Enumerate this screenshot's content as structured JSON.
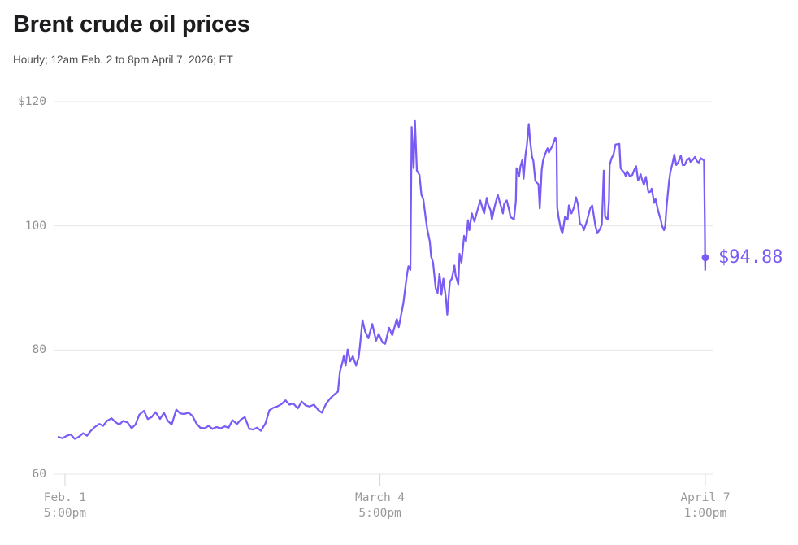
{
  "header": {
    "title": "Brent crude oil prices",
    "subtitle": "Hourly; 12am Feb. 2 to 8pm April 7, 2026; ET"
  },
  "colors": {
    "line": "#7a5cf5",
    "marker": "#7a5cf5",
    "end_label": "#7a5cf5",
    "title_text": "#1d1d1f",
    "subtitle_text": "#4d4d4d",
    "axis_label": "#8e8e8e",
    "gridline": "#e9e7e5",
    "tick": "#d8d6d4",
    "background": "#ffffff"
  },
  "chart_data": {
    "type": "line",
    "title": "Brent crude oil prices",
    "subtitle": "Hourly; 12am Feb. 2 to 8pm April 7, 2026; ET",
    "x_unit": "time, hourly, fraction of span 12am Feb. 2 to 8pm April 7, 2026 ET",
    "y_unit": "USD per barrel",
    "ylim": [
      60,
      120
    ],
    "grid": "horizontal",
    "legend": "none",
    "y_ticks": [
      {
        "label": "$120",
        "value": 120
      },
      {
        "label": "100",
        "value": 100
      },
      {
        "label": "80",
        "value": 80
      },
      {
        "label": "60",
        "value": 60
      }
    ],
    "x_ticks": [
      {
        "line1": "Feb. 1",
        "line2": "5:00pm",
        "t": 0.01
      },
      {
        "line1": "March 4",
        "line2": "5:00pm",
        "t": 0.497
      },
      {
        "line1": "April 7",
        "line2": "1:00pm",
        "t": 1.0
      }
    ],
    "end_label": "$94.88",
    "last_price": 94.88,
    "points": [
      [
        0.0,
        66.0
      ],
      [
        0.006,
        65.8
      ],
      [
        0.013,
        66.2
      ],
      [
        0.019,
        66.4
      ],
      [
        0.025,
        65.7
      ],
      [
        0.031,
        66.0
      ],
      [
        0.038,
        66.6
      ],
      [
        0.044,
        66.2
      ],
      [
        0.05,
        67.0
      ],
      [
        0.056,
        67.6
      ],
      [
        0.063,
        68.1
      ],
      [
        0.069,
        67.8
      ],
      [
        0.075,
        68.6
      ],
      [
        0.082,
        69.0
      ],
      [
        0.088,
        68.4
      ],
      [
        0.094,
        68.0
      ],
      [
        0.1,
        68.6
      ],
      [
        0.107,
        68.3
      ],
      [
        0.113,
        67.4
      ],
      [
        0.119,
        68.0
      ],
      [
        0.125,
        69.6
      ],
      [
        0.132,
        70.2
      ],
      [
        0.138,
        68.9
      ],
      [
        0.144,
        69.2
      ],
      [
        0.15,
        70.0
      ],
      [
        0.157,
        68.9
      ],
      [
        0.163,
        69.9
      ],
      [
        0.169,
        68.6
      ],
      [
        0.175,
        68.0
      ],
      [
        0.182,
        70.4
      ],
      [
        0.188,
        69.8
      ],
      [
        0.194,
        69.7
      ],
      [
        0.201,
        69.9
      ],
      [
        0.207,
        69.4
      ],
      [
        0.213,
        68.2
      ],
      [
        0.219,
        67.5
      ],
      [
        0.226,
        67.4
      ],
      [
        0.232,
        67.8
      ],
      [
        0.238,
        67.3
      ],
      [
        0.244,
        67.6
      ],
      [
        0.251,
        67.4
      ],
      [
        0.257,
        67.7
      ],
      [
        0.263,
        67.5
      ],
      [
        0.269,
        68.7
      ],
      [
        0.276,
        68.1
      ],
      [
        0.282,
        68.8
      ],
      [
        0.288,
        69.2
      ],
      [
        0.295,
        67.3
      ],
      [
        0.301,
        67.2
      ],
      [
        0.307,
        67.5
      ],
      [
        0.313,
        67.0
      ],
      [
        0.32,
        68.2
      ],
      [
        0.326,
        70.3
      ],
      [
        0.332,
        70.7
      ],
      [
        0.338,
        70.9
      ],
      [
        0.345,
        71.3
      ],
      [
        0.351,
        71.9
      ],
      [
        0.357,
        71.2
      ],
      [
        0.363,
        71.4
      ],
      [
        0.37,
        70.6
      ],
      [
        0.376,
        71.7
      ],
      [
        0.382,
        71.1
      ],
      [
        0.388,
        70.9
      ],
      [
        0.395,
        71.2
      ],
      [
        0.401,
        70.4
      ],
      [
        0.407,
        69.9
      ],
      [
        0.414,
        71.4
      ],
      [
        0.42,
        72.2
      ],
      [
        0.426,
        72.8
      ],
      [
        0.432,
        73.3
      ],
      [
        0.435,
        76.5
      ],
      [
        0.439,
        78.0
      ],
      [
        0.441,
        79.0
      ],
      [
        0.444,
        77.5
      ],
      [
        0.447,
        80.1
      ],
      [
        0.451,
        78.2
      ],
      [
        0.455,
        79.0
      ],
      [
        0.46,
        77.5
      ],
      [
        0.464,
        78.8
      ],
      [
        0.466,
        80.6
      ],
      [
        0.47,
        84.8
      ],
      [
        0.474,
        83.0
      ],
      [
        0.479,
        81.9
      ],
      [
        0.485,
        84.2
      ],
      [
        0.491,
        81.5
      ],
      [
        0.495,
        82.6
      ],
      [
        0.501,
        81.2
      ],
      [
        0.505,
        81.0
      ],
      [
        0.511,
        83.6
      ],
      [
        0.516,
        82.4
      ],
      [
        0.523,
        85.0
      ],
      [
        0.526,
        83.7
      ],
      [
        0.533,
        87.5
      ],
      [
        0.536,
        90.0
      ],
      [
        0.539,
        92.3
      ],
      [
        0.541,
        93.5
      ],
      [
        0.544,
        92.9
      ],
      [
        0.546,
        115.9
      ],
      [
        0.549,
        109.3
      ],
      [
        0.551,
        117.0
      ],
      [
        0.554,
        108.9
      ],
      [
        0.558,
        108.2
      ],
      [
        0.561,
        105.0
      ],
      [
        0.564,
        104.3
      ],
      [
        0.568,
        101.0
      ],
      [
        0.57,
        99.5
      ],
      [
        0.574,
        97.5
      ],
      [
        0.576,
        95.1
      ],
      [
        0.579,
        94.1
      ],
      [
        0.583,
        90.0
      ],
      [
        0.586,
        89.2
      ],
      [
        0.589,
        92.3
      ],
      [
        0.591,
        90.5
      ],
      [
        0.592,
        88.9
      ],
      [
        0.595,
        91.5
      ],
      [
        0.599,
        88.3
      ],
      [
        0.601,
        85.7
      ],
      [
        0.605,
        91.0
      ],
      [
        0.608,
        91.5
      ],
      [
        0.612,
        93.6
      ],
      [
        0.614,
        92.0
      ],
      [
        0.618,
        90.6
      ],
      [
        0.62,
        95.5
      ],
      [
        0.623,
        94.1
      ],
      [
        0.627,
        98.4
      ],
      [
        0.63,
        97.5
      ],
      [
        0.633,
        100.9
      ],
      [
        0.635,
        99.3
      ],
      [
        0.639,
        102.0
      ],
      [
        0.643,
        100.7
      ],
      [
        0.645,
        101.5
      ],
      [
        0.649,
        103.0
      ],
      [
        0.652,
        104.1
      ],
      [
        0.655,
        103.0
      ],
      [
        0.658,
        102.0
      ],
      [
        0.662,
        104.5
      ],
      [
        0.664,
        103.5
      ],
      [
        0.668,
        102.5
      ],
      [
        0.67,
        101.0
      ],
      [
        0.674,
        103.0
      ],
      [
        0.679,
        105.0
      ],
      [
        0.683,
        103.5
      ],
      [
        0.687,
        102.0
      ],
      [
        0.689,
        103.5
      ],
      [
        0.693,
        104.1
      ],
      [
        0.696,
        102.8
      ],
      [
        0.699,
        101.4
      ],
      [
        0.702,
        101.2
      ],
      [
        0.704,
        101.0
      ],
      [
        0.707,
        104.0
      ],
      [
        0.708,
        109.3
      ],
      [
        0.712,
        108.0
      ],
      [
        0.714,
        109.5
      ],
      [
        0.717,
        110.6
      ],
      [
        0.719,
        107.6
      ],
      [
        0.722,
        111.5
      ],
      [
        0.724,
        112.9
      ],
      [
        0.727,
        116.4
      ],
      [
        0.729,
        113.8
      ],
      [
        0.732,
        111.1
      ],
      [
        0.734,
        110.5
      ],
      [
        0.737,
        107.3
      ],
      [
        0.739,
        107.0
      ],
      [
        0.742,
        106.7
      ],
      [
        0.744,
        102.8
      ],
      [
        0.747,
        109.0
      ],
      [
        0.749,
        110.5
      ],
      [
        0.752,
        111.5
      ],
      [
        0.756,
        112.5
      ],
      [
        0.758,
        111.8
      ],
      [
        0.762,
        112.6
      ],
      [
        0.764,
        113.0
      ],
      [
        0.768,
        114.2
      ],
      [
        0.77,
        113.5
      ],
      [
        0.771,
        103.0
      ],
      [
        0.773,
        101.4
      ],
      [
        0.777,
        99.3
      ],
      [
        0.779,
        98.8
      ],
      [
        0.783,
        101.5
      ],
      [
        0.787,
        101.0
      ],
      [
        0.789,
        103.3
      ],
      [
        0.793,
        102.0
      ],
      [
        0.797,
        103.0
      ],
      [
        0.8,
        104.6
      ],
      [
        0.803,
        103.5
      ],
      [
        0.806,
        100.4
      ],
      [
        0.81,
        100.0
      ],
      [
        0.812,
        99.3
      ],
      [
        0.816,
        100.5
      ],
      [
        0.822,
        102.8
      ],
      [
        0.825,
        103.3
      ],
      [
        0.83,
        100.0
      ],
      [
        0.833,
        98.8
      ],
      [
        0.837,
        99.5
      ],
      [
        0.84,
        100.2
      ],
      [
        0.843,
        108.9
      ],
      [
        0.845,
        101.5
      ],
      [
        0.849,
        101.0
      ],
      [
        0.851,
        104.0
      ],
      [
        0.852,
        109.8
      ],
      [
        0.855,
        110.9
      ],
      [
        0.858,
        111.5
      ],
      [
        0.861,
        113.1
      ],
      [
        0.867,
        113.2
      ],
      [
        0.869,
        109.3
      ],
      [
        0.871,
        109.0
      ],
      [
        0.875,
        108.5
      ],
      [
        0.877,
        108.0
      ],
      [
        0.879,
        108.8
      ],
      [
        0.883,
        108.0
      ],
      [
        0.887,
        108.2
      ],
      [
        0.89,
        109.0
      ],
      [
        0.893,
        109.6
      ],
      [
        0.896,
        107.3
      ],
      [
        0.9,
        108.3
      ],
      [
        0.902,
        107.5
      ],
      [
        0.905,
        106.6
      ],
      [
        0.908,
        107.9
      ],
      [
        0.912,
        105.4
      ],
      [
        0.915,
        105.5
      ],
      [
        0.917,
        106.0
      ],
      [
        0.921,
        103.7
      ],
      [
        0.923,
        104.3
      ],
      [
        0.927,
        102.4
      ],
      [
        0.931,
        101.0
      ],
      [
        0.933,
        100.0
      ],
      [
        0.936,
        99.3
      ],
      [
        0.938,
        100.0
      ],
      [
        0.94,
        103.0
      ],
      [
        0.944,
        107.3
      ],
      [
        0.946,
        108.7
      ],
      [
        0.949,
        110.0
      ],
      [
        0.952,
        111.5
      ],
      [
        0.955,
        109.8
      ],
      [
        0.958,
        110.2
      ],
      [
        0.962,
        111.3
      ],
      [
        0.965,
        109.8
      ],
      [
        0.968,
        109.8
      ],
      [
        0.971,
        110.5
      ],
      [
        0.975,
        110.9
      ],
      [
        0.977,
        110.3
      ],
      [
        0.981,
        110.7
      ],
      [
        0.984,
        111.1
      ],
      [
        0.987,
        110.4
      ],
      [
        0.99,
        110.2
      ],
      [
        0.993,
        110.9
      ],
      [
        0.996,
        110.7
      ],
      [
        0.998,
        110.5
      ],
      [
        0.9993,
        100.0
      ],
      [
        0.9997,
        92.9
      ],
      [
        1.0,
        94.88
      ]
    ]
  }
}
